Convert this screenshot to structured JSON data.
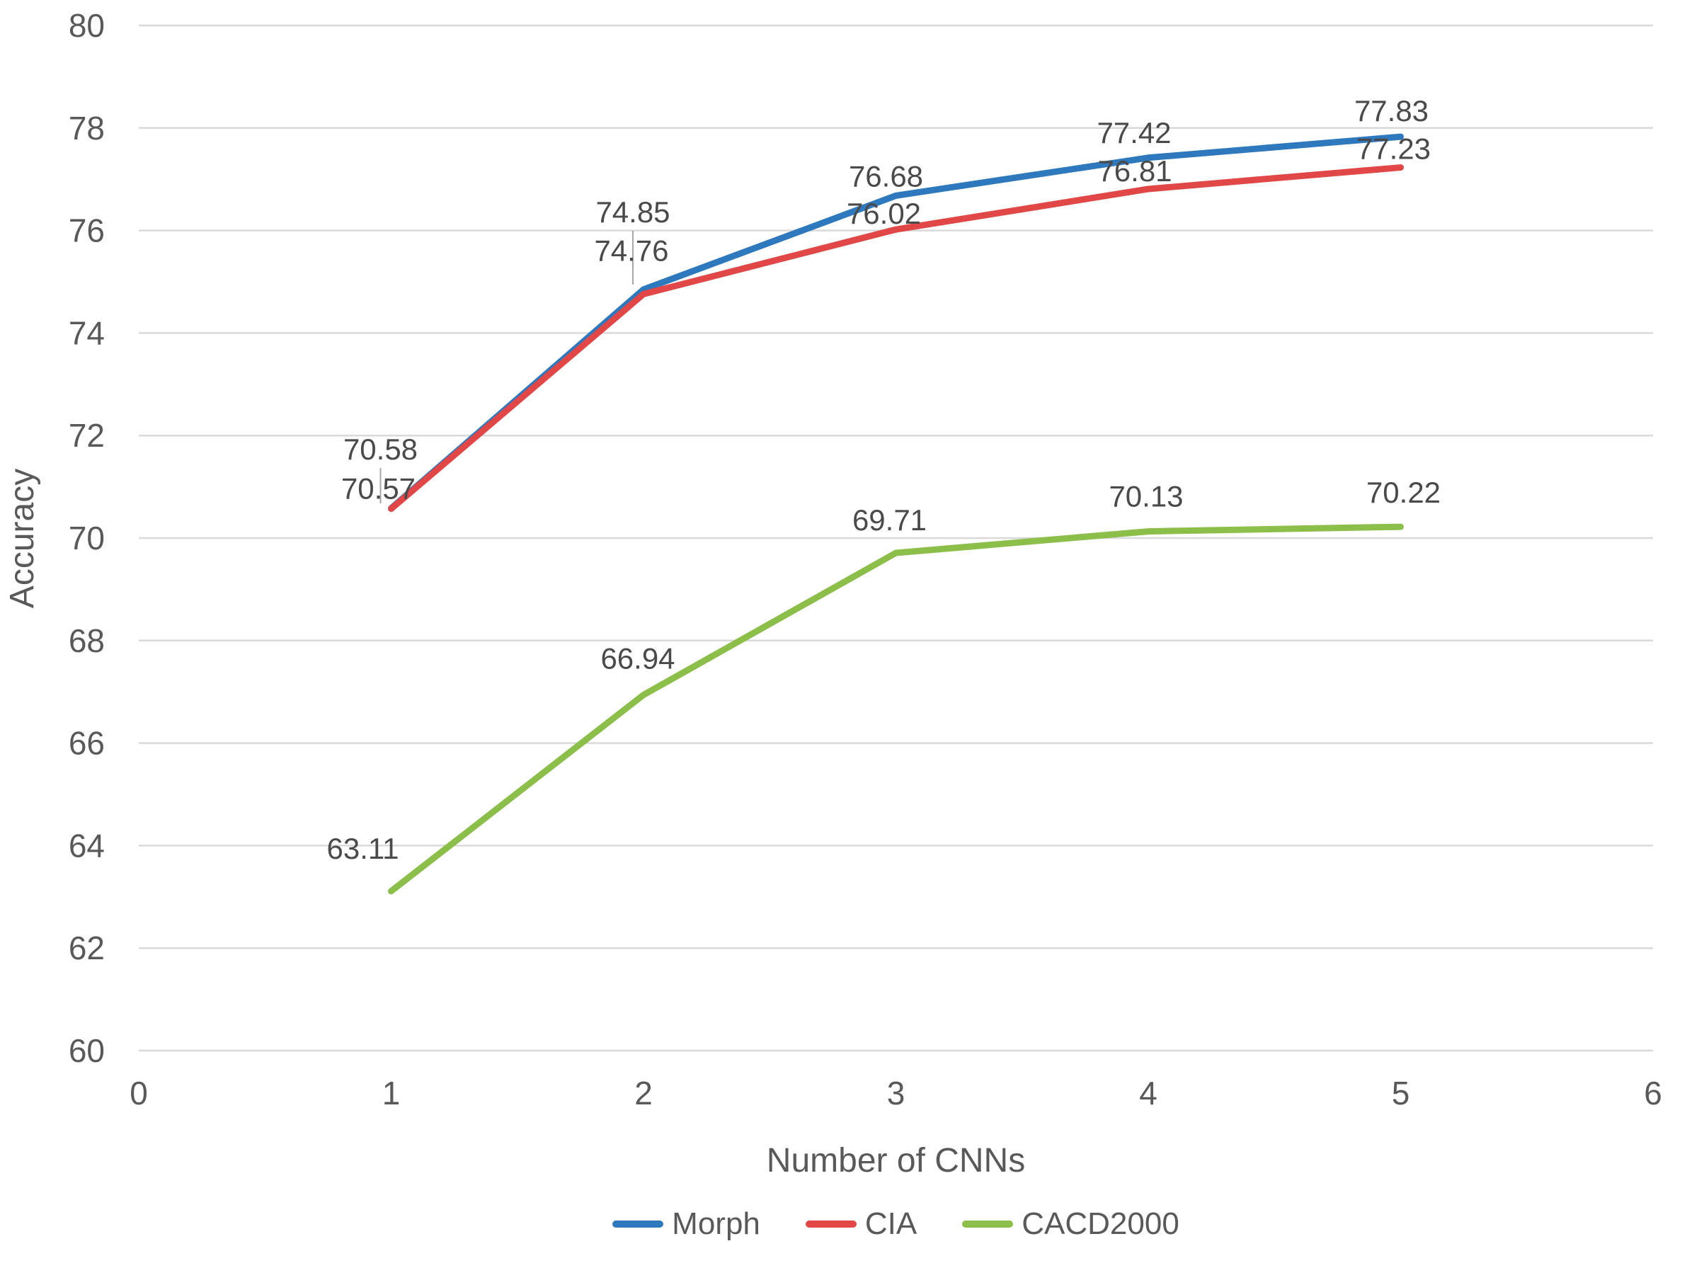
{
  "chart_data": {
    "type": "line",
    "title": "",
    "xlabel": "Number of CNNs",
    "ylabel": "Accuracy",
    "xlim": [
      0,
      6
    ],
    "ylim": [
      60,
      80
    ],
    "x_ticks": [
      0,
      1,
      2,
      3,
      4,
      5,
      6
    ],
    "y_ticks": [
      60,
      62,
      64,
      66,
      68,
      70,
      72,
      74,
      76,
      78,
      80
    ],
    "grid": "horizontal-only",
    "legend_position": "bottom-center",
    "data_labels_visible": true,
    "x": [
      1,
      2,
      3,
      4,
      5
    ],
    "series": [
      {
        "name": "Morph",
        "color": "#2E78BE",
        "values": [
          70.58,
          74.85,
          76.68,
          77.42,
          77.83
        ]
      },
      {
        "name": "CIA",
        "color": "#E14747",
        "values": [
          70.57,
          74.76,
          76.02,
          76.81,
          77.23
        ]
      },
      {
        "name": "CACD2000",
        "color": "#8CBE4A",
        "values": [
          63.11,
          66.94,
          69.71,
          70.13,
          70.22
        ]
      }
    ],
    "colors": {
      "gridline": "#D9D9D9",
      "tick_text": "#595959",
      "data_label_text": "#4A4A4A",
      "leader_line": "#A6A6A6"
    }
  }
}
